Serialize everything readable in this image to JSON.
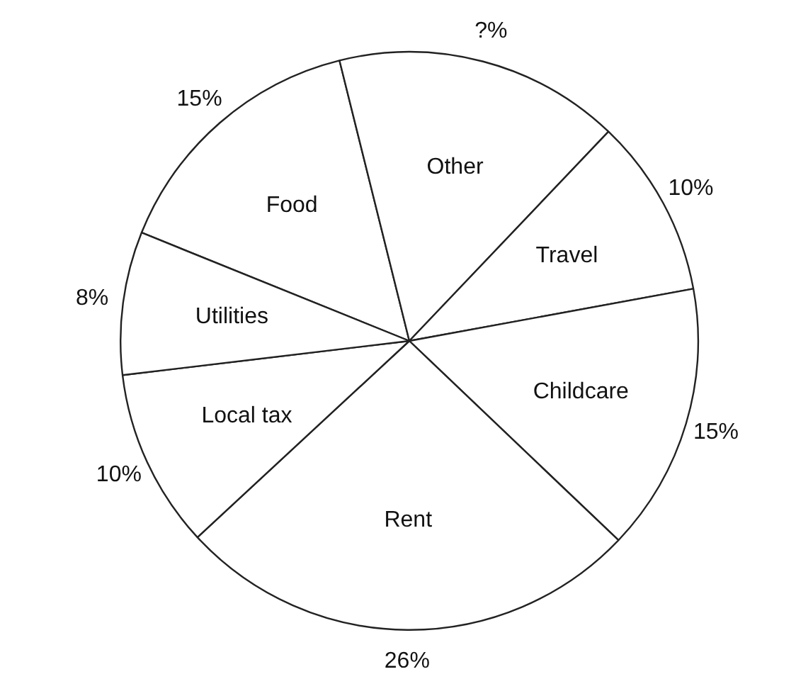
{
  "chart_data": {
    "type": "pie",
    "categories": [
      "Food",
      "Other",
      "Travel",
      "Childcare",
      "Rent",
      "Local tax",
      "Utilities"
    ],
    "values": [
      15,
      16,
      10,
      15,
      26,
      10,
      8
    ],
    "value_labels": [
      "15%",
      "?%",
      "10%",
      "15%",
      "26%",
      "10%",
      "8%"
    ],
    "colors": [
      "#ffffff",
      "#ffffff",
      "#ffffff",
      "#ffffff",
      "#ffffff",
      "#ffffff",
      "#ffffff"
    ],
    "legend": false
  }
}
